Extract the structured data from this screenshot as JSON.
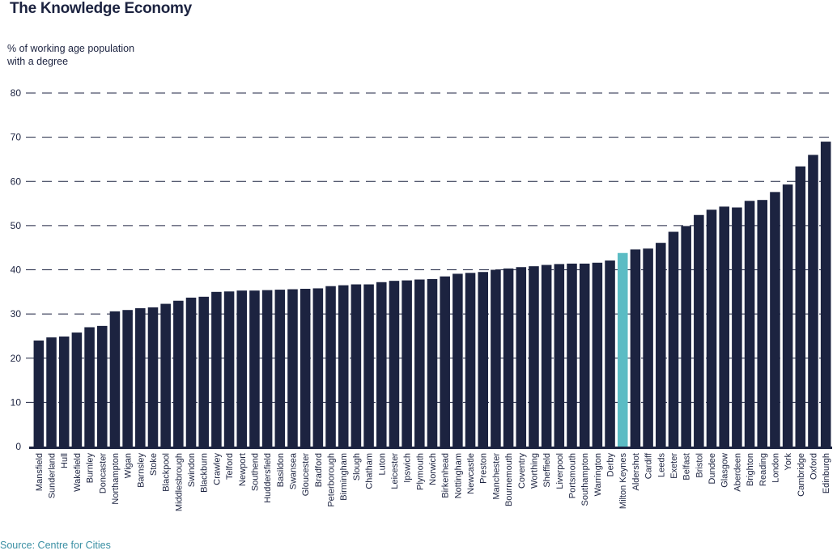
{
  "title": "The Knowledge Economy",
  "source": "Source: Centre for Cities",
  "colors": {
    "bar": "#1c2340",
    "highlight": "#5bbcc4",
    "gridline": "#1c2340",
    "text": "#1c2340",
    "source": "#3a8fa3"
  },
  "chart_data": {
    "type": "bar",
    "title": "The Knowledge Economy",
    "ylabel": "% of working age population\nwith a degree",
    "xlabel": "",
    "ylim": [
      0,
      80
    ],
    "yticks": [
      0,
      10,
      20,
      30,
      40,
      50,
      60,
      70,
      80
    ],
    "grid": true,
    "highlight": "Milton Keynes",
    "categories": [
      "Mansfield",
      "Sunderland",
      "Hull",
      "Wakefield",
      "Burnley",
      "Doncaster",
      "Northampton",
      "Wigan",
      "Barnsley",
      "Stoke",
      "Blackpool",
      "Middlesbrough",
      "Swindon",
      "Blackburn",
      "Crawley",
      "Telford",
      "Newport",
      "Southend",
      "Huddersfield",
      "Basildon",
      "Swansea",
      "Gloucester",
      "Bradford",
      "Peterborough",
      "Birmingham",
      "Slough",
      "Chatham",
      "Luton",
      "Leicester",
      "Ipswich",
      "Plymouth",
      "Norwich",
      "Birkenhead",
      "Nottingham",
      "Newcastle",
      "Preston",
      "Manchester",
      "Bournemouth",
      "Coventry",
      "Worthing",
      "Sheffield",
      "Liverpool",
      "Portsmouth",
      "Southampton",
      "Warrington",
      "Derby",
      "Milton Keynes",
      "Aldershot",
      "Cardiff",
      "Leeds",
      "Exeter",
      "Belfast",
      "Bristol",
      "Dundee",
      "Glasgow",
      "Aberdeen",
      "Brighton",
      "Reading",
      "London",
      "York",
      "Cambridge",
      "Oxford",
      "Edinburgh"
    ],
    "values": [
      24.0,
      24.7,
      24.9,
      25.8,
      27.0,
      27.3,
      30.6,
      30.9,
      31.3,
      31.5,
      32.3,
      33.0,
      33.7,
      33.9,
      35.0,
      35.1,
      35.3,
      35.3,
      35.4,
      35.5,
      35.6,
      35.7,
      35.8,
      36.3,
      36.5,
      36.7,
      36.7,
      37.2,
      37.5,
      37.6,
      37.8,
      37.9,
      38.5,
      39.1,
      39.3,
      39.5,
      40.0,
      40.3,
      40.6,
      40.8,
      41.1,
      41.3,
      41.4,
      41.4,
      41.6,
      42.1,
      43.8,
      44.6,
      44.8,
      46.1,
      48.6,
      49.9,
      52.4,
      53.6,
      54.3,
      54.1,
      55.6,
      55.8,
      57.6,
      59.3,
      63.4,
      66.0,
      69.0
    ]
  }
}
